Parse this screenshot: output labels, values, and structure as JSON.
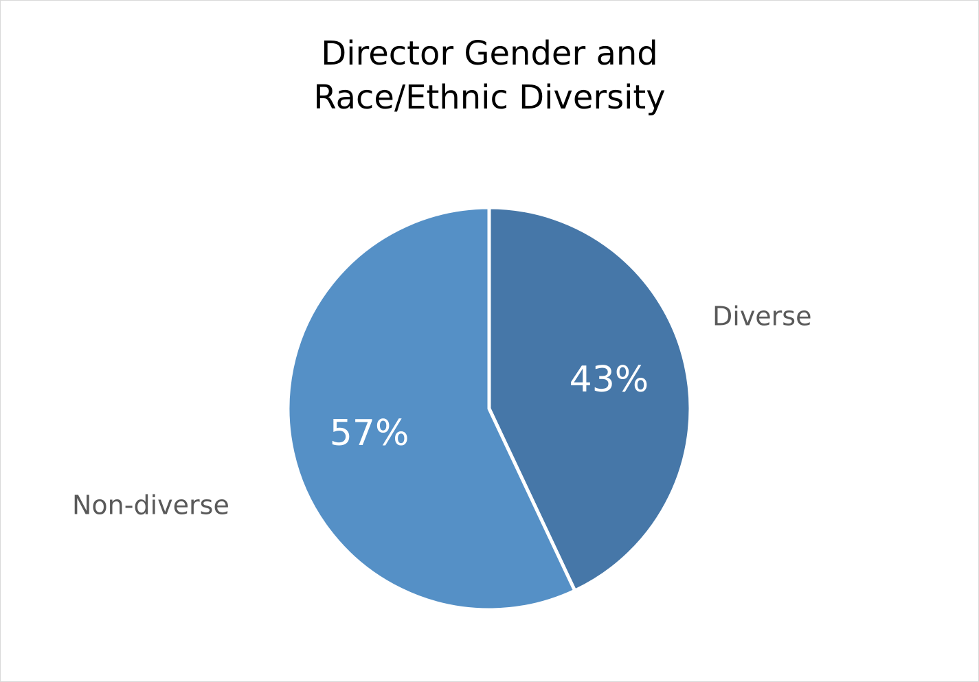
{
  "chart_data": {
    "type": "pie",
    "title": [
      "Director Gender and",
      "Race/Ethnic Diversity"
    ],
    "categories": [
      "Diverse",
      "Non-diverse"
    ],
    "values": [
      43,
      57
    ],
    "value_labels": [
      "43%",
      "57%"
    ],
    "colors": [
      "#4677a8",
      "#5590c6"
    ],
    "slice_border_color": "#ffffff",
    "start_angle_deg": 0,
    "direction": "clockwise",
    "legend": "none"
  }
}
